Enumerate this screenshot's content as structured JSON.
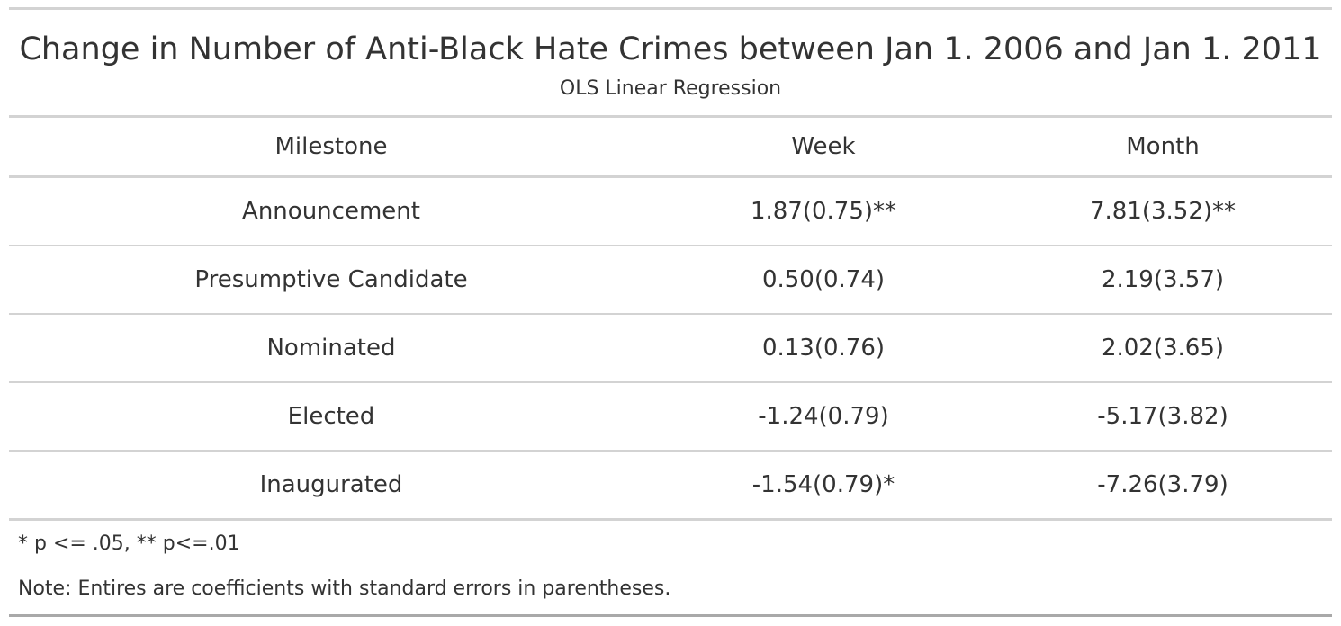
{
  "table": {
    "title": "Change in Number of Anti-Black Hate Crimes between Jan 1. 2006 and Jan 1. 2011",
    "subtitle": "OLS Linear Regression",
    "columns": [
      "Milestone",
      "Week",
      "Month"
    ],
    "rows": [
      {
        "milestone": "Announcement",
        "week": "1.87(0.75)**",
        "month": "7.81(3.52)**"
      },
      {
        "milestone": "Presumptive Candidate",
        "week": "0.50(0.74)",
        "month": "2.19(3.57)"
      },
      {
        "milestone": "Nominated",
        "week": "0.13(0.76)",
        "month": "2.02(3.65)"
      },
      {
        "milestone": "Elected",
        "week": "-1.24(0.79)",
        "month": "-5.17(3.82)"
      },
      {
        "milestone": "Inaugurated",
        "week": "-1.54(0.79)*",
        "month": "-7.26(3.79)"
      }
    ],
    "footnotes": [
      "* p <= .05, ** p<=.01",
      "Note: Entires are coefficients with standard errors in parentheses."
    ]
  }
}
